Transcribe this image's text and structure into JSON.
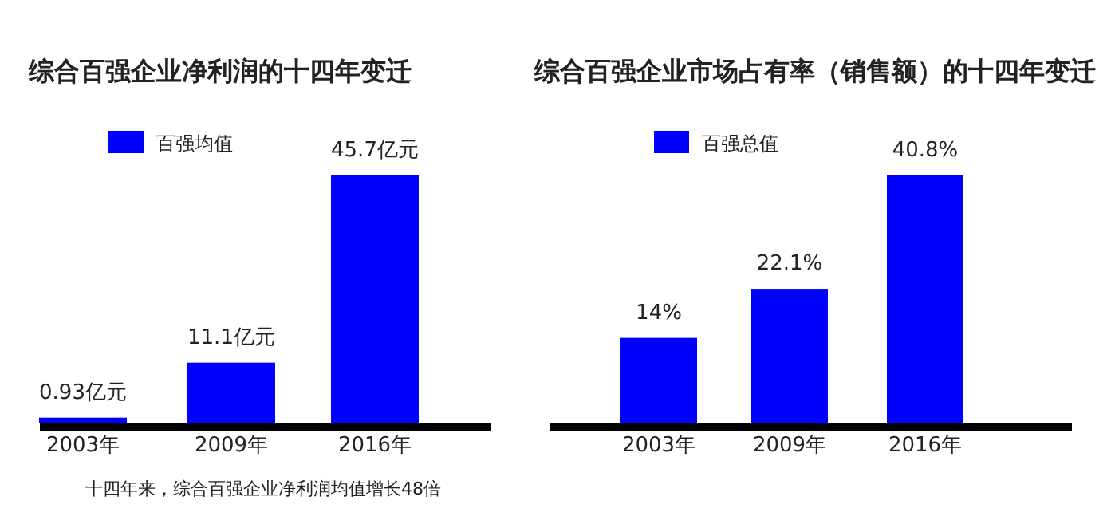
{
  "chart_data": [
    {
      "type": "bar",
      "title": "综合百强企业净利润的十四年变迁",
      "categories": [
        "2003年",
        "2009年",
        "2016年"
      ],
      "series": [
        {
          "name": "百强均值",
          "color": "#0000ff",
          "values": [
            0.93,
            11.1,
            45.7
          ],
          "value_labels": [
            "0.93亿元",
            "11.1亿元",
            "45.7亿元"
          ]
        }
      ],
      "legend": "top left",
      "annotations": [
        "十四年来，综合百强企业净利润均值增长48倍"
      ]
    },
    {
      "type": "bar",
      "title": "综合百强企业市场占有率（销售额）的十四年变迁",
      "categories": [
        "2003年",
        "2009年",
        "2016年"
      ],
      "series": [
        {
          "name": "百强总值",
          "color": "#0000ff",
          "values": [
            14,
            22.1,
            40.8
          ],
          "value_labels": [
            "14%",
            "22.1%",
            "40.8%"
          ]
        }
      ],
      "legend": "top left"
    }
  ]
}
